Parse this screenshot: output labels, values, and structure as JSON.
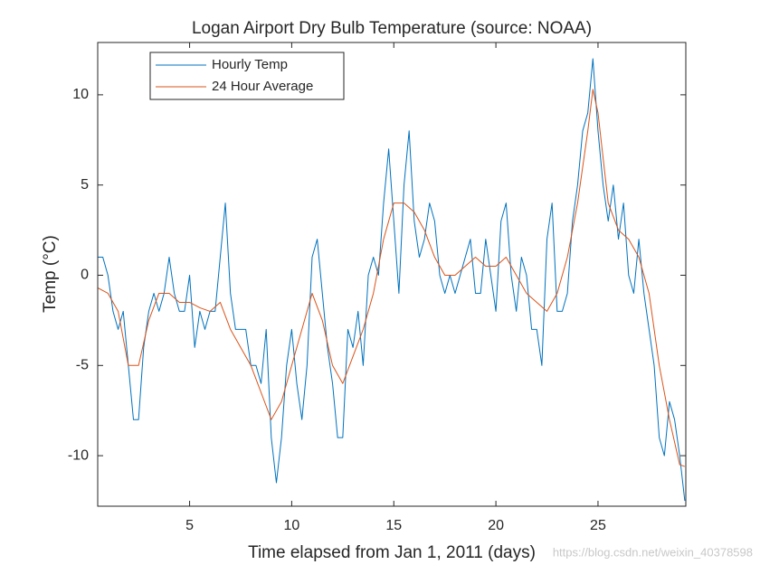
{
  "chart_data": {
    "type": "line",
    "title": "Logan Airport Dry Bulb Temperature (source: NOAA)",
    "x_label": "Time elapsed from Jan 1, 2011 (days)",
    "y_label": "Temp (°C)",
    "watermark": "https://blog.csdn.net/weixin_40378598",
    "xlim": [
      0.5,
      29.3
    ],
    "ylim": [
      -12.8,
      12.9
    ],
    "xticks": [
      5,
      10,
      15,
      20,
      25
    ],
    "yticks": [
      -10,
      -5,
      0,
      5,
      10
    ],
    "grid": false,
    "legend": "upper left",
    "series": [
      {
        "name": "Hourly Temp",
        "color": "#0072BD",
        "x": [
          0.5,
          0.75,
          1,
          1.25,
          1.5,
          1.75,
          2,
          2.25,
          2.5,
          2.75,
          3,
          3.25,
          3.5,
          3.75,
          4,
          4.25,
          4.5,
          4.75,
          5,
          5.25,
          5.5,
          5.75,
          6,
          6.25,
          6.5,
          6.75,
          7,
          7.25,
          7.5,
          7.75,
          8,
          8.25,
          8.5,
          8.75,
          9,
          9.25,
          9.5,
          9.75,
          10,
          10.25,
          10.5,
          10.75,
          11,
          11.25,
          11.5,
          11.75,
          12,
          12.25,
          12.5,
          12.75,
          13,
          13.25,
          13.5,
          13.75,
          14,
          14.25,
          14.5,
          14.75,
          15,
          15.25,
          15.5,
          15.75,
          16,
          16.25,
          16.5,
          16.75,
          17,
          17.25,
          17.5,
          17.75,
          18,
          18.25,
          18.5,
          18.75,
          19,
          19.25,
          19.5,
          19.75,
          20,
          20.25,
          20.5,
          20.75,
          21,
          21.25,
          21.5,
          21.75,
          22,
          22.25,
          22.5,
          22.75,
          23,
          23.25,
          23.5,
          23.75,
          24,
          24.25,
          24.5,
          24.75,
          25,
          25.25,
          25.5,
          25.75,
          26,
          26.25,
          26.5,
          26.75,
          27,
          27.25,
          27.5,
          27.75,
          28,
          28.25,
          28.5,
          28.75,
          29,
          29.25
        ],
        "values": [
          1,
          1,
          0,
          -2,
          -3,
          -2,
          -5,
          -8,
          -8,
          -4,
          -2,
          -1,
          -2,
          -1,
          1,
          -1,
          -2,
          -2,
          0,
          -4,
          -2,
          -3,
          -2,
          -2,
          1,
          4,
          -1,
          -3,
          -3,
          -3,
          -5,
          -5,
          -6,
          -3,
          -9,
          -11.5,
          -9,
          -5,
          -3,
          -6,
          -8,
          -5,
          1,
          2,
          -1,
          -4,
          -6,
          -9,
          -9,
          -3,
          -4,
          -2,
          -5,
          0,
          1,
          0,
          4,
          7,
          3,
          -1,
          5,
          8,
          3,
          1,
          2,
          4,
          3,
          0,
          -1,
          0,
          -1,
          0,
          1,
          2,
          -1,
          -1,
          2,
          0,
          -2,
          3,
          4,
          0,
          -2,
          1,
          0,
          -3,
          -3,
          -5,
          2,
          4,
          -2,
          -2,
          -1,
          3,
          5,
          8,
          9,
          12,
          8,
          5,
          3,
          5,
          2,
          4,
          0,
          -1,
          2,
          -1,
          -3,
          -5,
          -9,
          -10,
          -7,
          -8,
          -10,
          -12.5
        ]
      },
      {
        "name": "24 Hour Average",
        "color": "#D95319",
        "x": [
          0.5,
          1,
          1.5,
          2,
          2.5,
          3,
          3.5,
          4,
          4.5,
          5,
          5.5,
          6,
          6.5,
          7,
          7.5,
          8,
          8.5,
          9,
          9.5,
          10,
          10.5,
          11,
          11.5,
          12,
          12.5,
          13,
          13.5,
          14,
          14.5,
          15,
          15.5,
          16,
          16.5,
          17,
          17.5,
          18,
          18.5,
          19,
          19.5,
          20,
          20.5,
          21,
          21.5,
          22,
          22.5,
          23,
          23.5,
          24,
          24.5,
          24.75,
          25,
          25.5,
          26,
          26.5,
          27,
          27.5,
          28,
          28.5,
          29,
          29.25
        ],
        "values": [
          -0.7,
          -1,
          -2,
          -5,
          -5,
          -2.5,
          -1,
          -1,
          -1.5,
          -1.5,
          -1.8,
          -2,
          -1.5,
          -3,
          -4,
          -5,
          -6.5,
          -8,
          -7,
          -5,
          -3,
          -1,
          -2.5,
          -5,
          -6,
          -4.5,
          -3,
          -1,
          2,
          4,
          4,
          3.5,
          2.5,
          1,
          0,
          0,
          0.5,
          1,
          0.5,
          0.5,
          1,
          0,
          -1,
          -1.5,
          -2,
          -1,
          1,
          4,
          8,
          10.3,
          9,
          4,
          2.5,
          2,
          1,
          -1,
          -5,
          -8,
          -10.5,
          -10.6
        ]
      }
    ]
  }
}
